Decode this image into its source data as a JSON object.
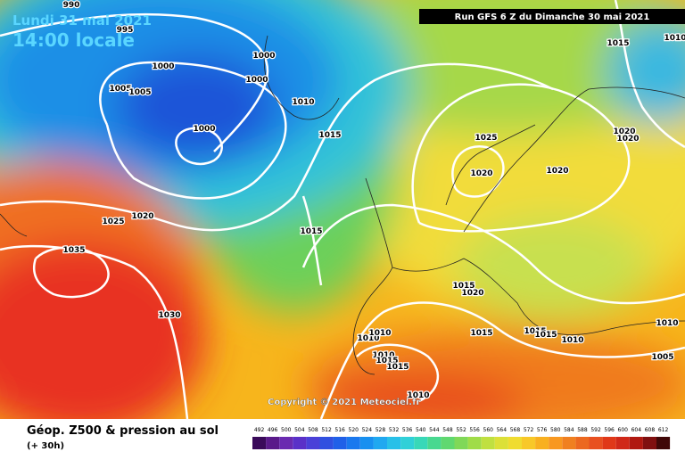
{
  "header": {
    "date": "Lundi 31 mai 2021",
    "time": "14:00 locale",
    "run": "Run GFS 6 Z du Dimanche 30 mai 2021"
  },
  "copyright": "Copyright © 2021 Meteociel.fr",
  "footer": {
    "title": "Géop. Z500 & pression au sol",
    "lead": "(+ 30h)"
  },
  "legend": {
    "values": [
      492,
      496,
      500,
      504,
      508,
      512,
      516,
      520,
      524,
      528,
      532,
      536,
      540,
      544,
      548,
      552,
      556,
      560,
      564,
      568,
      572,
      576,
      580,
      584,
      588,
      592,
      596,
      600,
      604,
      608,
      612
    ]
  },
  "isobars": {
    "labels": [
      990,
      995,
      1000,
      1000,
      1000,
      1005,
      1005,
      1000,
      1010,
      1015,
      1015,
      1025,
      1020,
      1020,
      1020,
      1020,
      1025,
      1020,
      1015,
      1035,
      1030,
      1015,
      1020,
      1010,
      1010,
      1015,
      1015,
      1015,
      1010,
      1010,
      1005,
      1010,
      1015,
      1015,
      1010,
      1010
    ]
  }
}
